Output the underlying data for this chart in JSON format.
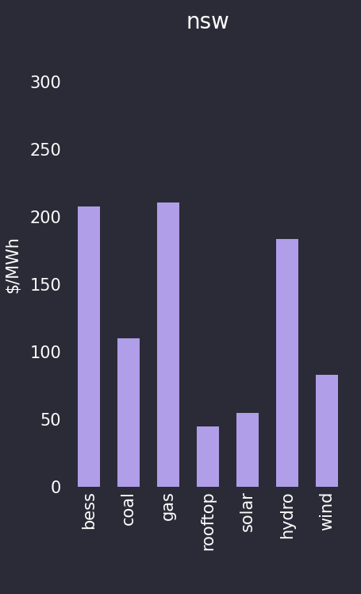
{
  "title": "nsw",
  "categories": [
    "bess",
    "coal",
    "gas",
    "rooftop",
    "solar",
    "hydro",
    "wind"
  ],
  "values": [
    208,
    110,
    211,
    45,
    55,
    184,
    83
  ],
  "bar_color": "#b09ee8",
  "background_color": "#2b2b38",
  "text_color": "#ffffff",
  "ylabel": "$/MWh",
  "ylim": [
    0,
    330
  ],
  "yticks": [
    0,
    50,
    100,
    150,
    200,
    250,
    300
  ],
  "title_fontsize": 20,
  "tick_fontsize": 15,
  "ylabel_fontsize": 15
}
